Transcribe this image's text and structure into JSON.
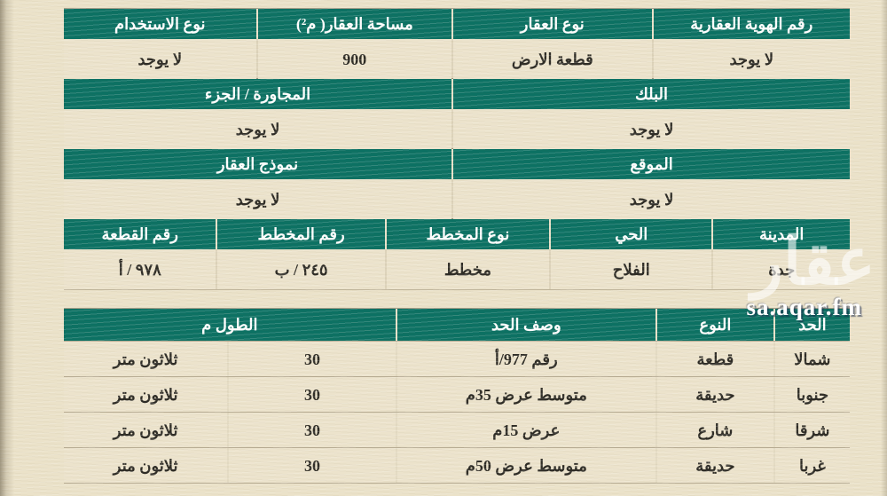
{
  "colors": {
    "header_green": "#0c7163",
    "page_beige": "#ebe2c9",
    "cell_beige": "#ece3cc",
    "text_dark": "#2e2c26",
    "watermark_white": "#ffffff"
  },
  "property_table": {
    "sections": [
      {
        "headers": [
          "رقم الهوية العقارية",
          "نوع العقار",
          "مساحة العقار( م²)",
          "نوع الاستخدام"
        ],
        "values": [
          "لا يوجد",
          "قطعة الارض",
          "900",
          "لا يوجد"
        ]
      },
      {
        "headers": [
          "البلك",
          "المجاورة / الجزء"
        ],
        "values": [
          "لا يوجد",
          "لا يوجد"
        ]
      },
      {
        "headers": [
          "الموقع",
          "نموذج العقار"
        ],
        "values": [
          "لا يوجد",
          "لا يوجد"
        ]
      },
      {
        "headers": [
          "المدينة",
          "الحي",
          "نوع المخطط",
          "رقم المخطط",
          "رقم القطعة"
        ],
        "values": [
          "جدة",
          "الفلاح",
          "مخطط",
          "٢٤٥ / ب",
          "٩٧٨ / أ"
        ]
      }
    ]
  },
  "boundaries_table": {
    "headers": [
      "الحد",
      "النوع",
      "وصف الحد",
      "الطول م"
    ],
    "rows": [
      {
        "side": "شمالا",
        "type": "قطعة",
        "desc": "رقم 977/أ",
        "length_num": "30",
        "length_text": "ثلاثون متر"
      },
      {
        "side": "جنوبا",
        "type": "حديقة",
        "desc": "متوسط عرض 35م",
        "length_num": "30",
        "length_text": "ثلاثون متر"
      },
      {
        "side": "شرقا",
        "type": "شارع",
        "desc": "عرض 15م",
        "length_num": "30",
        "length_text": "ثلاثون متر"
      },
      {
        "side": "غربا",
        "type": "حديقة",
        "desc": "متوسط عرض 50م",
        "length_num": "30",
        "length_text": "ثلاثون متر"
      }
    ]
  },
  "watermark": {
    "logo": "عقار",
    "site": "sa.aqar.fm"
  }
}
